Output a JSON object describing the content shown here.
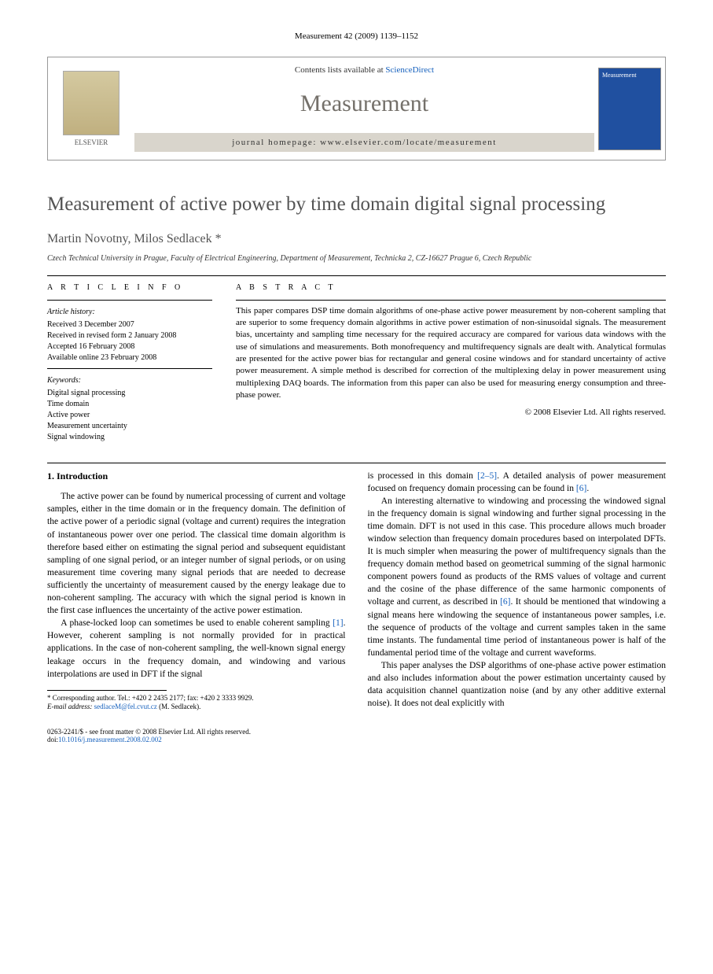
{
  "header": {
    "citation": "Measurement 42 (2009) 1139–1152"
  },
  "journalBox": {
    "publisher": "ELSEVIER",
    "contentsAt": "Contents lists available at ",
    "contentsLink": "ScienceDirect",
    "journalName": "Measurement",
    "homepageLabel": "journal homepage: www.elsevier.com/locate/measurement",
    "coverText": "Measurement"
  },
  "article": {
    "title": "Measurement of active power by time domain digital signal processing",
    "authors": "Martin Novotny, Milos Sedlacek *",
    "affiliation": "Czech Technical University in Prague, Faculty of Electrical Engineering, Department of Measurement, Technicka 2, CZ-16627 Prague 6, Czech Republic"
  },
  "info": {
    "heading": "A R T I C L E   I N F O",
    "historyLabel": "Article history:",
    "received": "Received 3 December 2007",
    "revised": "Received in revised form 2 January 2008",
    "accepted": "Accepted 16 February 2008",
    "online": "Available online 23 February 2008",
    "keywordsLabel": "Keywords:",
    "kw1": "Digital signal processing",
    "kw2": "Time domain",
    "kw3": "Active power",
    "kw4": "Measurement uncertainty",
    "kw5": "Signal windowing"
  },
  "abstract": {
    "heading": "A B S T R A C T",
    "text": "This paper compares DSP time domain algorithms of one-phase active power measurement by non-coherent sampling that are superior to some frequency domain algorithms in active power estimation of non-sinusoidal signals. The measurement bias, uncertainty and sampling time necessary for the required accuracy are compared for various data windows with the use of simulations and measurements. Both monofrequency and multifrequency signals are dealt with. Analytical formulas are presented for the active power bias for rectangular and general cosine windows and for standard uncertainty of active power measurement. A simple method is described for correction of the multiplexing delay in power measurement using multiplexing DAQ boards. The information from this paper can also be used for measuring energy consumption and three-phase power.",
    "copyright": "© 2008 Elsevier Ltd. All rights reserved."
  },
  "body": {
    "section1": "1. Introduction",
    "p1": "The active power can be found by numerical processing of current and voltage samples, either in the time domain or in the frequency domain. The definition of the active power of a periodic signal (voltage and current) requires the integration of instantaneous power over one period. The classical time domain algorithm is therefore based either on estimating the signal period and subsequent equidistant sampling of one signal period, or an integer number of signal periods, or on using measurement time covering many signal periods that are needed to decrease sufficiently the uncertainty of measurement caused by the energy leakage due to non-coherent sampling. The accuracy with which the signal period is known in the first case influences the uncertainty of the active power estimation.",
    "p2a": "A phase-locked loop can sometimes be used to enable coherent sampling ",
    "ref1": "[1]",
    "p2b": ". However, coherent sampling is not normally provided for in practical applications. In the case of non-coherent sampling, the well-known signal energy leakage occurs in the frequency domain, and windowing and various interpolations are used in DFT if the signal",
    "p3a": "is processed in this domain ",
    "ref25": "[2–5]",
    "p3b": ". A detailed analysis of power measurement focused on frequency domain processing can be found in ",
    "ref6a": "[6]",
    "p3c": ".",
    "p4a": "An interesting alternative to windowing and processing the windowed signal in the frequency domain is signal windowing and further signal processing in the time domain. DFT is not used in this case. This procedure allows much broader window selection than frequency domain procedures based on interpolated DFTs. It is much simpler when measuring the power of multifrequency signals than the frequency domain method based on geometrical summing of the signal harmonic component powers found as products of the RMS values of voltage and current and the cosine of the phase difference of the same harmonic components of voltage and current, as described in ",
    "ref6b": "[6]",
    "p4b": ". It should be mentioned that windowing a signal means here windowing the sequence of instantaneous power samples, i.e. the sequence of products of the voltage and current samples taken in the same time instants. The fundamental time period of instantaneous power is half of the fundamental period time of the voltage and current waveforms.",
    "p5": "This paper analyses the DSP algorithms of one-phase active power estimation and also includes information about the power estimation uncertainty caused by data acquisition channel quantization noise (and by any other additive external noise). It does not deal explicitly with"
  },
  "footnote": {
    "corr": "* Corresponding author. Tel.: +420 2 2435 2177; fax: +420 2 3333 9929.",
    "emailLabel": "E-mail address: ",
    "email": "sedlaceM@fel.cvut.cz",
    "emailAfter": " (M. Sedlacek)."
  },
  "doi": {
    "line1": "0263-2241/$ - see front matter © 2008 Elsevier Ltd. All rights reserved.",
    "line2a": "doi:",
    "line2b": "10.1016/j.measurement.2008.02.002"
  },
  "colors": {
    "link": "#1560bd",
    "titleGray": "#535353",
    "journalGray": "#74706a",
    "barBg": "#d9d5cc"
  }
}
